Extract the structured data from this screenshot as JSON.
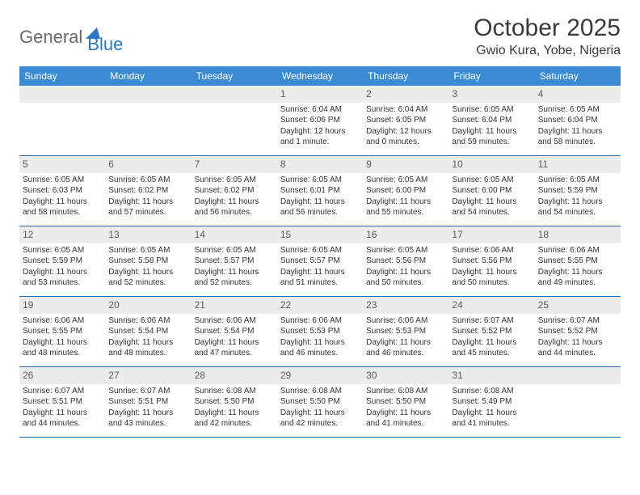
{
  "logo": {
    "part1": "General",
    "part2": "Blue"
  },
  "title": "October 2025",
  "location": "Gwio Kura, Yobe, Nigeria",
  "weekdays": [
    "Sunday",
    "Monday",
    "Tuesday",
    "Wednesday",
    "Thursday",
    "Friday",
    "Saturday"
  ],
  "colors": {
    "header_bg": "#3b8bd4",
    "header_text": "#ffffff",
    "day_header_bg": "#ececec",
    "border": "#2f6aa3",
    "logo_gray": "#6a6a6a",
    "logo_blue": "#2a78bf"
  },
  "weeks": [
    [
      {
        "num": "",
        "empty": true
      },
      {
        "num": "",
        "empty": true
      },
      {
        "num": "",
        "empty": true
      },
      {
        "num": "1",
        "sunrise": "Sunrise: 6:04 AM",
        "sunset": "Sunset: 6:06 PM",
        "daylight": "Daylight: 12 hours and 1 minute."
      },
      {
        "num": "2",
        "sunrise": "Sunrise: 6:04 AM",
        "sunset": "Sunset: 6:05 PM",
        "daylight": "Daylight: 12 hours and 0 minutes."
      },
      {
        "num": "3",
        "sunrise": "Sunrise: 6:05 AM",
        "sunset": "Sunset: 6:04 PM",
        "daylight": "Daylight: 11 hours and 59 minutes."
      },
      {
        "num": "4",
        "sunrise": "Sunrise: 6:05 AM",
        "sunset": "Sunset: 6:04 PM",
        "daylight": "Daylight: 11 hours and 58 minutes."
      }
    ],
    [
      {
        "num": "5",
        "sunrise": "Sunrise: 6:05 AM",
        "sunset": "Sunset: 6:03 PM",
        "daylight": "Daylight: 11 hours and 58 minutes."
      },
      {
        "num": "6",
        "sunrise": "Sunrise: 6:05 AM",
        "sunset": "Sunset: 6:02 PM",
        "daylight": "Daylight: 11 hours and 57 minutes."
      },
      {
        "num": "7",
        "sunrise": "Sunrise: 6:05 AM",
        "sunset": "Sunset: 6:02 PM",
        "daylight": "Daylight: 11 hours and 56 minutes."
      },
      {
        "num": "8",
        "sunrise": "Sunrise: 6:05 AM",
        "sunset": "Sunset: 6:01 PM",
        "daylight": "Daylight: 11 hours and 56 minutes."
      },
      {
        "num": "9",
        "sunrise": "Sunrise: 6:05 AM",
        "sunset": "Sunset: 6:00 PM",
        "daylight": "Daylight: 11 hours and 55 minutes."
      },
      {
        "num": "10",
        "sunrise": "Sunrise: 6:05 AM",
        "sunset": "Sunset: 6:00 PM",
        "daylight": "Daylight: 11 hours and 54 minutes."
      },
      {
        "num": "11",
        "sunrise": "Sunrise: 6:05 AM",
        "sunset": "Sunset: 5:59 PM",
        "daylight": "Daylight: 11 hours and 54 minutes."
      }
    ],
    [
      {
        "num": "12",
        "sunrise": "Sunrise: 6:05 AM",
        "sunset": "Sunset: 5:59 PM",
        "daylight": "Daylight: 11 hours and 53 minutes."
      },
      {
        "num": "13",
        "sunrise": "Sunrise: 6:05 AM",
        "sunset": "Sunset: 5:58 PM",
        "daylight": "Daylight: 11 hours and 52 minutes."
      },
      {
        "num": "14",
        "sunrise": "Sunrise: 6:05 AM",
        "sunset": "Sunset: 5:57 PM",
        "daylight": "Daylight: 11 hours and 52 minutes."
      },
      {
        "num": "15",
        "sunrise": "Sunrise: 6:05 AM",
        "sunset": "Sunset: 5:57 PM",
        "daylight": "Daylight: 11 hours and 51 minutes."
      },
      {
        "num": "16",
        "sunrise": "Sunrise: 6:05 AM",
        "sunset": "Sunset: 5:56 PM",
        "daylight": "Daylight: 11 hours and 50 minutes."
      },
      {
        "num": "17",
        "sunrise": "Sunrise: 6:06 AM",
        "sunset": "Sunset: 5:56 PM",
        "daylight": "Daylight: 11 hours and 50 minutes."
      },
      {
        "num": "18",
        "sunrise": "Sunrise: 6:06 AM",
        "sunset": "Sunset: 5:55 PM",
        "daylight": "Daylight: 11 hours and 49 minutes."
      }
    ],
    [
      {
        "num": "19",
        "sunrise": "Sunrise: 6:06 AM",
        "sunset": "Sunset: 5:55 PM",
        "daylight": "Daylight: 11 hours and 48 minutes."
      },
      {
        "num": "20",
        "sunrise": "Sunrise: 6:06 AM",
        "sunset": "Sunset: 5:54 PM",
        "daylight": "Daylight: 11 hours and 48 minutes."
      },
      {
        "num": "21",
        "sunrise": "Sunrise: 6:06 AM",
        "sunset": "Sunset: 5:54 PM",
        "daylight": "Daylight: 11 hours and 47 minutes."
      },
      {
        "num": "22",
        "sunrise": "Sunrise: 6:06 AM",
        "sunset": "Sunset: 5:53 PM",
        "daylight": "Daylight: 11 hours and 46 minutes."
      },
      {
        "num": "23",
        "sunrise": "Sunrise: 6:06 AM",
        "sunset": "Sunset: 5:53 PM",
        "daylight": "Daylight: 11 hours and 46 minutes."
      },
      {
        "num": "24",
        "sunrise": "Sunrise: 6:07 AM",
        "sunset": "Sunset: 5:52 PM",
        "daylight": "Daylight: 11 hours and 45 minutes."
      },
      {
        "num": "25",
        "sunrise": "Sunrise: 6:07 AM",
        "sunset": "Sunset: 5:52 PM",
        "daylight": "Daylight: 11 hours and 44 minutes."
      }
    ],
    [
      {
        "num": "26",
        "sunrise": "Sunrise: 6:07 AM",
        "sunset": "Sunset: 5:51 PM",
        "daylight": "Daylight: 11 hours and 44 minutes."
      },
      {
        "num": "27",
        "sunrise": "Sunrise: 6:07 AM",
        "sunset": "Sunset: 5:51 PM",
        "daylight": "Daylight: 11 hours and 43 minutes."
      },
      {
        "num": "28",
        "sunrise": "Sunrise: 6:08 AM",
        "sunset": "Sunset: 5:50 PM",
        "daylight": "Daylight: 11 hours and 42 minutes."
      },
      {
        "num": "29",
        "sunrise": "Sunrise: 6:08 AM",
        "sunset": "Sunset: 5:50 PM",
        "daylight": "Daylight: 11 hours and 42 minutes."
      },
      {
        "num": "30",
        "sunrise": "Sunrise: 6:08 AM",
        "sunset": "Sunset: 5:50 PM",
        "daylight": "Daylight: 11 hours and 41 minutes."
      },
      {
        "num": "31",
        "sunrise": "Sunrise: 6:08 AM",
        "sunset": "Sunset: 5:49 PM",
        "daylight": "Daylight: 11 hours and 41 minutes."
      },
      {
        "num": "",
        "empty": true
      }
    ]
  ]
}
